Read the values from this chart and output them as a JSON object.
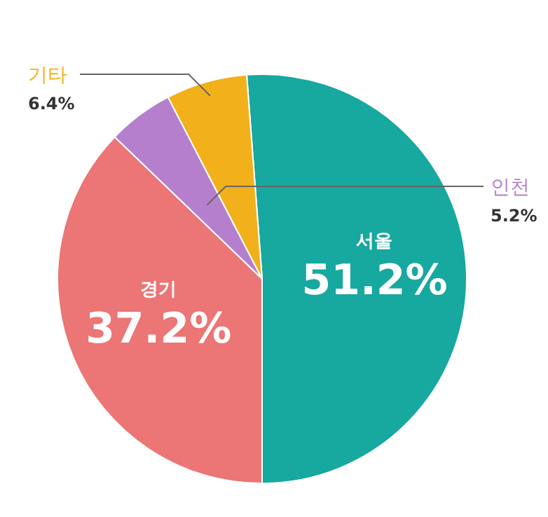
{
  "chart_data": {
    "type": "pie",
    "categories": [
      "서울",
      "경기",
      "인천",
      "기타"
    ],
    "values": [
      51.2,
      37.2,
      5.2,
      6.4
    ],
    "colors": [
      "#17a89f",
      "#ec7575",
      "#b67fce",
      "#f2b01a"
    ],
    "value_labels": [
      "51.2%",
      "37.2%",
      "5.2%",
      "6.4%"
    ]
  }
}
